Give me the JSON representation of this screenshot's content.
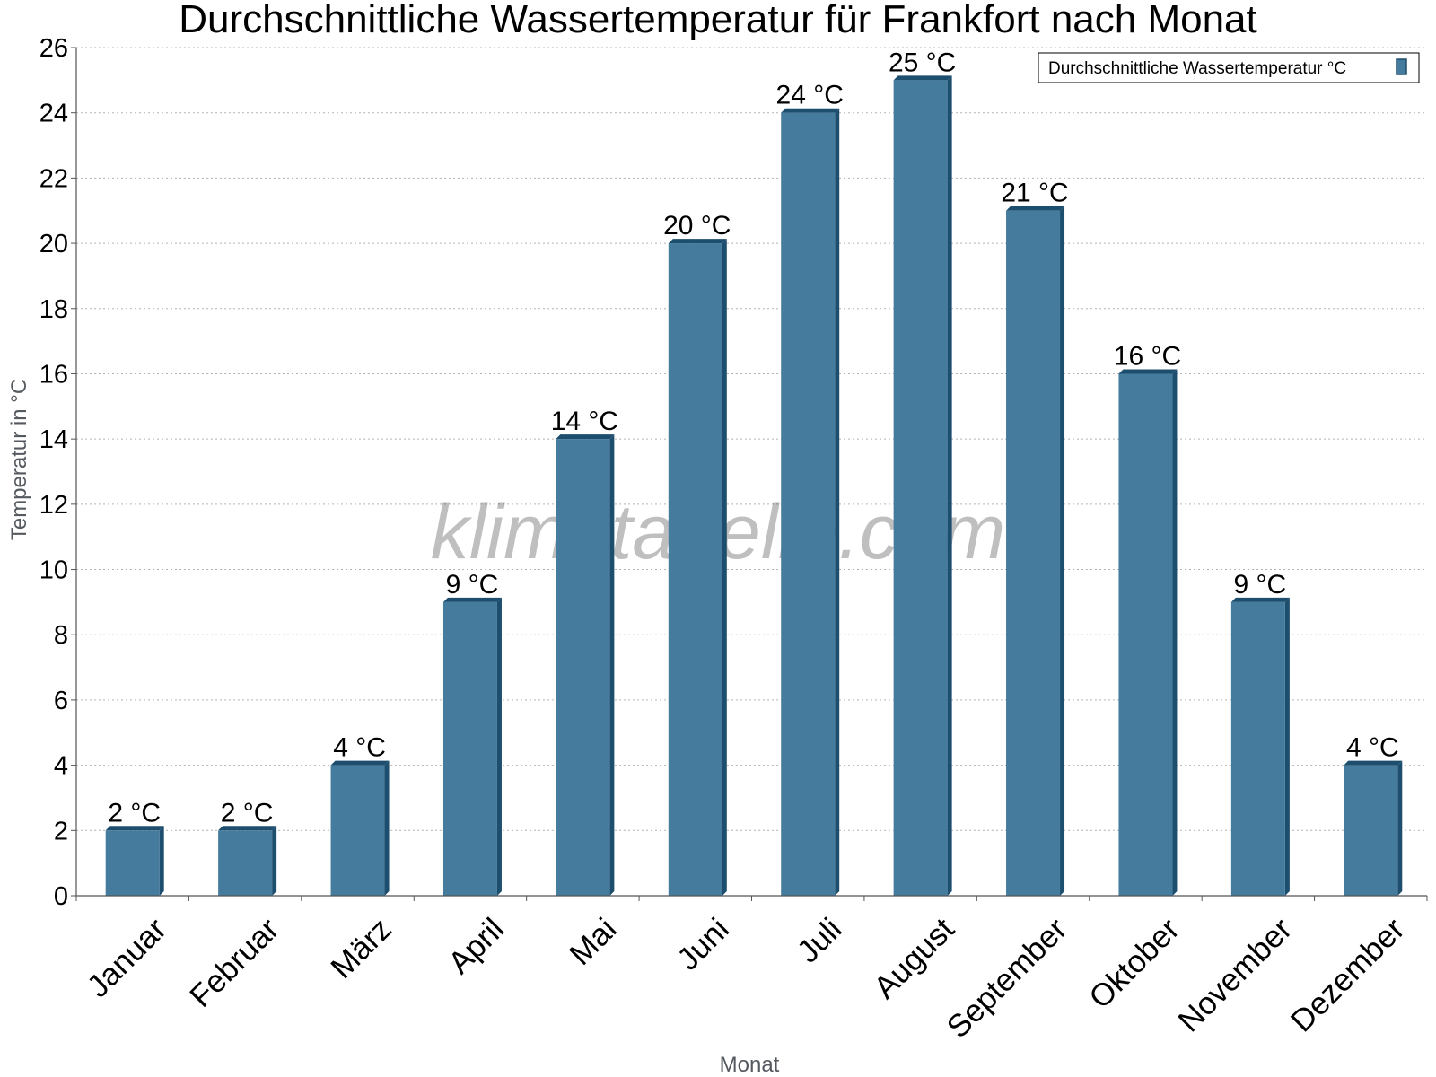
{
  "chart_data": {
    "type": "bar",
    "title": "Durchschnittliche Wassertemperatur für Frankfort nach Monat",
    "xlabel": "Monat",
    "ylabel": "Temperatur in °C",
    "categories": [
      "Januar",
      "Februar",
      "März",
      "April",
      "Mai",
      "Juni",
      "Juli",
      "August",
      "September",
      "Oktober",
      "November",
      "Dezember"
    ],
    "series": [
      {
        "name": "Durchschnittliche Wassertemperatur °C",
        "values": [
          2,
          2,
          4,
          9,
          14,
          20,
          24,
          25,
          21,
          16,
          9,
          4
        ],
        "labels": [
          "2 °C",
          "2 °C",
          "4 °C",
          "9 °C",
          "14 °C",
          "20 °C",
          "24 °C",
          "25 °C",
          "21 °C",
          "16 °C",
          "9 °C",
          "4 °C"
        ],
        "color": "#457b9d",
        "edge_color": "#1d4e6e"
      }
    ],
    "ylim": [
      0,
      26
    ],
    "yticks": [
      0,
      2,
      4,
      6,
      8,
      10,
      12,
      14,
      16,
      18,
      20,
      22,
      24,
      26
    ],
    "grid": true,
    "legend": "top-right",
    "watermark": "klimatabelle.com"
  }
}
